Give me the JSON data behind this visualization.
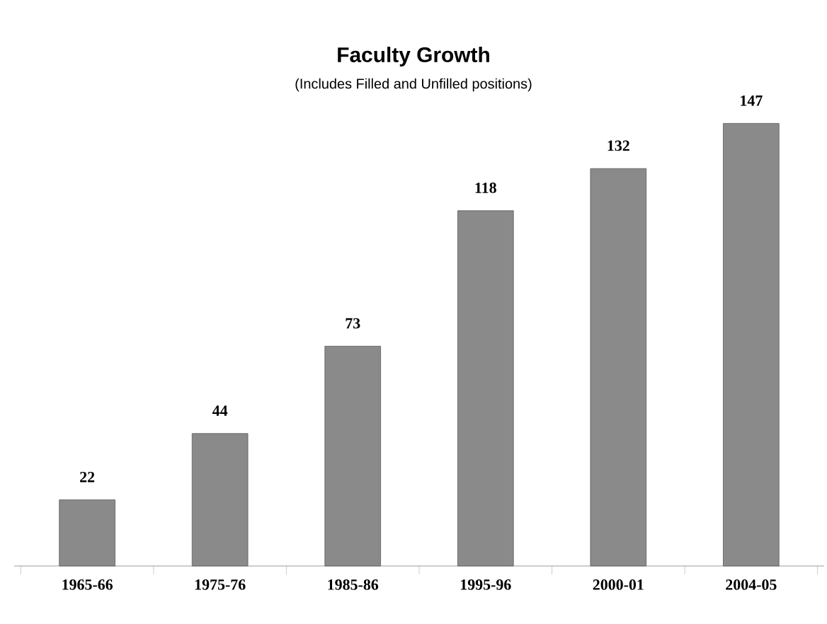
{
  "chart_data": {
    "type": "bar",
    "title": "Faculty Growth",
    "subtitle": "(Includes Filled and Unfilled positions)",
    "categories": [
      "1965-66",
      "1975-76",
      "1985-86",
      "1995-96",
      "2000-01",
      "2004-05"
    ],
    "values": [
      22,
      44,
      73,
      118,
      132,
      147
    ],
    "color": "#8a8a8a",
    "data_labels": true
  }
}
